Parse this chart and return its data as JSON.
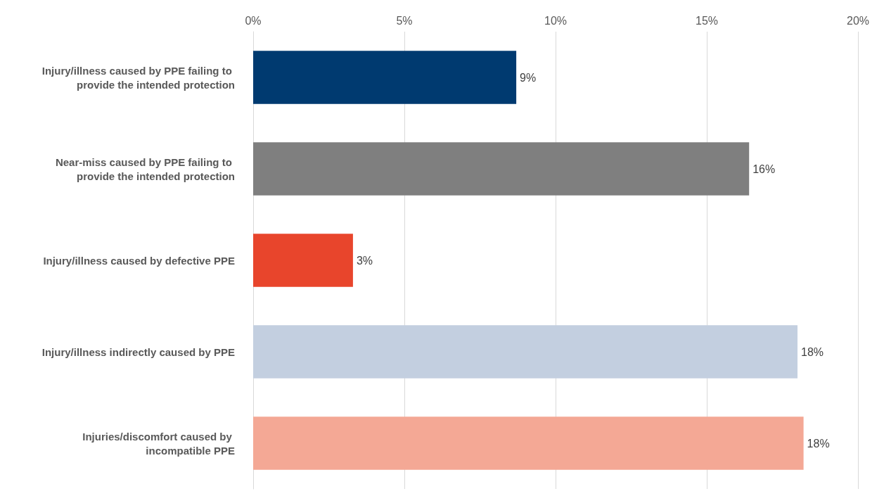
{
  "chart_data": {
    "type": "bar",
    "orientation": "horizontal",
    "categories": [
      "Injury/illness caused by PPE failing to provide the intended protection",
      "Near-miss caused by PPE failing to provide the intended protection",
      "Injury/illness caused by defective PPE",
      "Injury/illness indirectly caused by PPE",
      "Injuries/discomfort caused by incompatible PPE"
    ],
    "values": [
      8.7,
      16.4,
      3.3,
      18.0,
      18.2
    ],
    "value_labels": [
      "9%",
      "16%",
      "3%",
      "18%",
      "18%"
    ],
    "colors": [
      "#003a70",
      "#7f7f7f",
      "#e8452c",
      "#c3cfe0",
      "#f4a895"
    ],
    "xlim": [
      0,
      20
    ],
    "xticks": [
      {
        "value": 0,
        "label": "0%"
      },
      {
        "value": 5,
        "label": "5%"
      },
      {
        "value": 10,
        "label": "10%"
      },
      {
        "value": 15,
        "label": "15%"
      },
      {
        "value": 20,
        "label": "20%"
      }
    ],
    "grid": "x"
  }
}
